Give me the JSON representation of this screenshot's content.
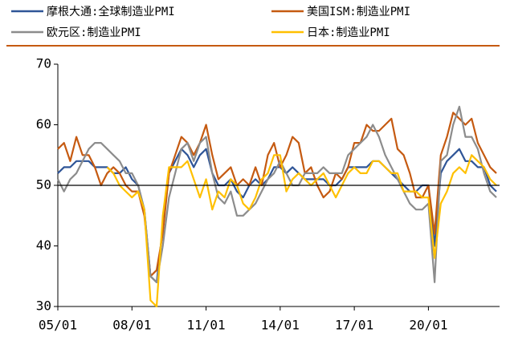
{
  "chart_data": {
    "type": "line",
    "categories": [
      "05/01",
      null,
      null,
      null,
      null,
      null,
      null,
      null,
      null,
      null,
      null,
      null,
      "08/01",
      null,
      null,
      null,
      null,
      null,
      null,
      null,
      null,
      null,
      null,
      null,
      "11/01",
      null,
      null,
      null,
      null,
      null,
      null,
      null,
      null,
      null,
      null,
      null,
      "14/01",
      null,
      null,
      null,
      null,
      null,
      null,
      null,
      null,
      null,
      null,
      null,
      "17/01",
      null,
      null,
      null,
      null,
      null,
      null,
      null,
      null,
      null,
      null,
      null,
      "20/01",
      null,
      null,
      null,
      null,
      null,
      null,
      null,
      null,
      null,
      null,
      null
    ],
    "series": [
      {
        "name": "摩根大通:全球制造业PMI",
        "color": "#2f5597",
        "values": [
          52,
          53,
          53,
          54,
          54,
          54,
          53,
          53,
          53,
          52,
          52,
          53,
          51,
          50,
          46,
          35,
          34,
          43,
          52,
          54,
          56,
          55,
          53,
          55,
          56,
          52,
          50,
          50,
          51,
          49,
          48,
          50,
          51,
          50,
          51,
          53,
          53,
          52,
          53,
          52,
          51,
          51,
          51,
          51,
          50,
          50,
          51,
          53,
          53,
          53,
          53,
          54,
          54,
          53,
          52,
          51,
          50,
          49,
          49,
          50,
          50,
          40,
          52,
          54,
          55,
          56,
          54,
          54,
          53,
          53,
          50,
          49
        ]
      },
      {
        "name": "美国ISM:制造业PMI",
        "color": "#c55a11",
        "values": [
          56,
          57,
          54,
          58,
          55,
          55,
          53,
          50,
          52,
          53,
          52,
          50,
          49,
          49,
          45,
          35,
          36,
          42,
          52,
          55,
          58,
          57,
          55,
          57,
          60,
          55,
          51,
          52,
          53,
          50,
          51,
          50,
          53,
          50,
          55,
          57,
          53,
          55,
          58,
          57,
          52,
          53,
          50,
          48,
          49,
          52,
          51,
          53,
          57,
          57,
          60,
          59,
          59,
          60,
          61,
          56,
          55,
          52,
          48,
          48,
          50,
          42,
          55,
          58,
          62,
          61,
          60,
          61,
          57,
          55,
          53,
          52
        ]
      },
      {
        "name": "欧元区:制造业PMI",
        "color": "#8c8c8c",
        "values": [
          51,
          49,
          51,
          52,
          54,
          56,
          57,
          57,
          56,
          55,
          54,
          52,
          52,
          50,
          46,
          35,
          34,
          40,
          48,
          52,
          56,
          57,
          54,
          57,
          58,
          52,
          48,
          47,
          49,
          45,
          45,
          46,
          47,
          49,
          51,
          52,
          54,
          52,
          50,
          50,
          52,
          52,
          52,
          53,
          52,
          52,
          52,
          55,
          56,
          57,
          58,
          60,
          58,
          55,
          53,
          51,
          49,
          47,
          46,
          46,
          47,
          34,
          54,
          55,
          60,
          63,
          58,
          58,
          56,
          52,
          49,
          48
        ]
      },
      {
        "name": "日本:制造业PMI",
        "color": "#ffc000",
        "values": [
          null,
          null,
          null,
          null,
          null,
          null,
          null,
          null,
          53,
          52,
          50,
          49,
          48,
          49,
          46,
          31,
          30,
          45,
          53,
          53,
          53,
          54,
          51,
          48,
          51,
          46,
          49,
          48,
          51,
          50,
          47,
          46,
          48,
          51,
          52,
          55,
          55,
          49,
          51,
          52,
          51,
          50,
          51,
          52,
          50,
          48,
          50,
          52,
          53,
          52,
          52,
          54,
          54,
          53,
          52,
          52,
          49,
          49,
          49,
          48,
          48,
          38,
          47,
          49,
          52,
          53,
          52,
          55,
          54,
          53,
          51,
          50
        ]
      }
    ],
    "ylim": [
      30,
      70
    ],
    "yticks": [
      30,
      40,
      50,
      60,
      70
    ],
    "reference_line": 50
  }
}
